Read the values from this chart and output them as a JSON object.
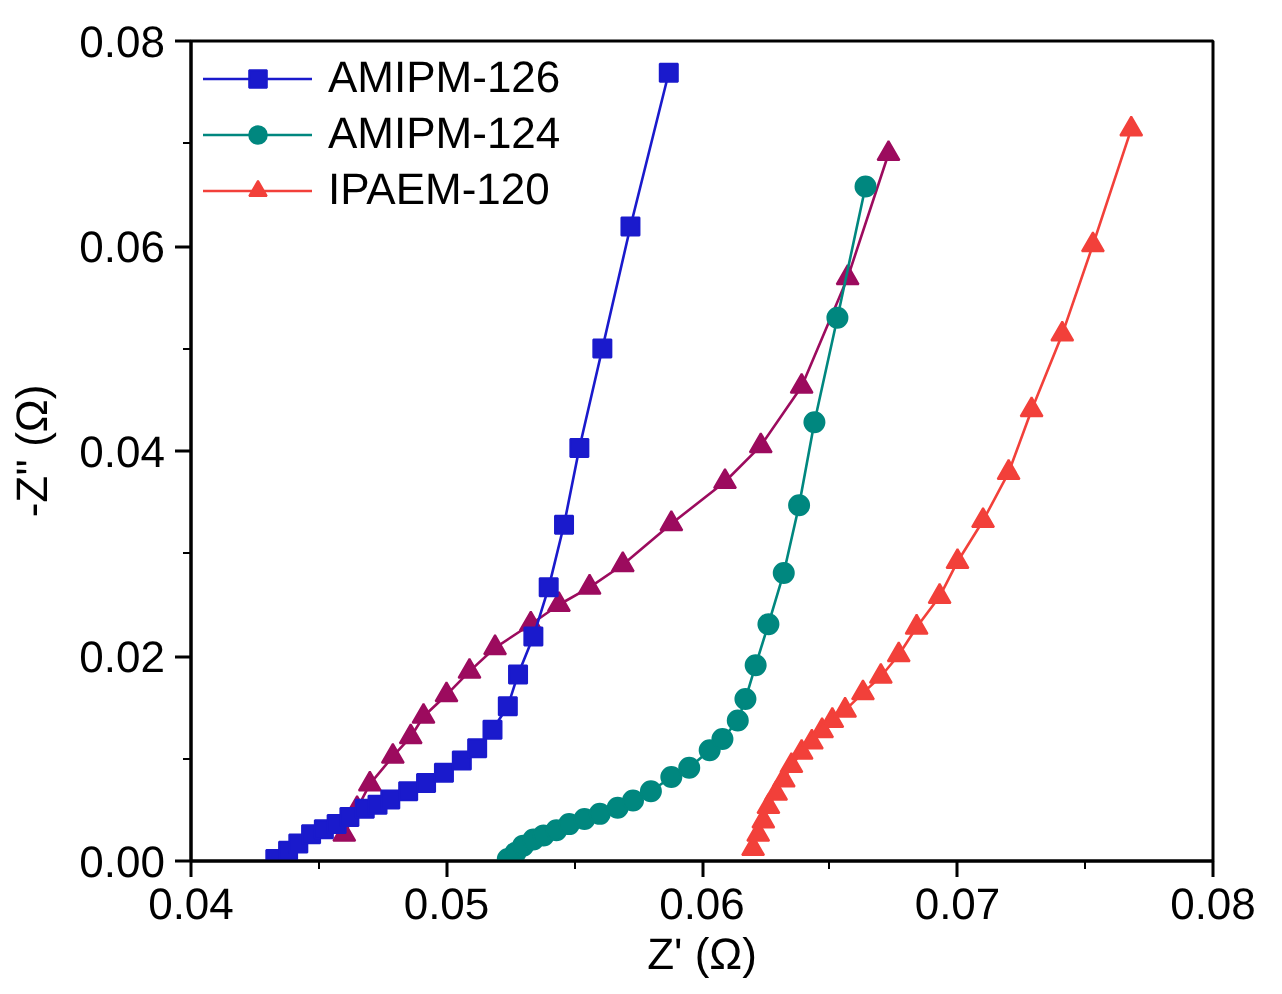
{
  "chart_data": {
    "type": "line",
    "xlabel": "Z' (Ω)",
    "ylabel": "-Z'' (Ω)",
    "xlim": [
      0.04,
      0.08
    ],
    "ylim": [
      0,
      0.08
    ],
    "xticks": [
      0.04,
      {
        "value": 0.045,
        "label": null
      },
      0.05,
      {
        "value": 0.055,
        "label": null
      },
      0.06,
      {
        "value": 0.065,
        "label": null
      },
      0.07,
      {
        "value": 0.075,
        "label": null
      },
      0.08
    ],
    "yticks": [
      {
        "value": 0,
        "label": "0.00"
      },
      {
        "value": 0.01,
        "label": null
      },
      0.02,
      {
        "value": 0.03,
        "label": null
      },
      0.04,
      {
        "value": 0.05,
        "label": null
      },
      0.06,
      {
        "value": 0.07,
        "label": null
      },
      0.08
    ],
    "grid": false,
    "legend": "top left",
    "line_style": "solid",
    "series": [
      {
        "name": "AMIPM-126",
        "color": "#1a1acc",
        "marker": "square",
        "x": [
          0.0433,
          0.0438,
          0.0442,
          0.0447,
          0.0452,
          0.0457,
          0.0462,
          0.0468,
          0.0473,
          0.0478,
          0.0485,
          0.0492,
          0.0499,
          0.0506,
          0.0512,
          0.0518,
          0.0524,
          0.0528,
          0.0534,
          0.054,
          0.0546,
          0.0552,
          0.0561,
          0.0572,
          0.0587
        ],
        "values": [
          0.0002,
          0.001,
          0.0017,
          0.0026,
          0.0031,
          0.0036,
          0.0043,
          0.0051,
          0.0055,
          0.006,
          0.0068,
          0.0076,
          0.0086,
          0.0098,
          0.011,
          0.0128,
          0.0151,
          0.0182,
          0.0219,
          0.0267,
          0.0328,
          0.0403,
          0.05,
          0.0619,
          0.0769
        ]
      },
      {
        "name": "AMIPM-124",
        "color": "#00877f",
        "marker": "circle",
        "x": [
          0.0524,
          0.0527,
          0.053,
          0.0534,
          0.0538,
          0.0543,
          0.0548,
          0.0554,
          0.056,
          0.0567,
          0.0573,
          0.058,
          0.0588,
          0.0595,
          0.0603,
          0.0608,
          0.0614,
          0.0617,
          0.0621,
          0.0626,
          0.0632,
          0.0638,
          0.0644,
          0.0653,
          0.0664
        ],
        "values": [
          0.0002,
          0.0008,
          0.0015,
          0.0021,
          0.0025,
          0.003,
          0.0036,
          0.0041,
          0.0046,
          0.0052,
          0.0059,
          0.0068,
          0.0082,
          0.0091,
          0.0108,
          0.0119,
          0.0137,
          0.0158,
          0.0191,
          0.0231,
          0.0281,
          0.0347,
          0.0428,
          0.053,
          0.0658
        ]
      },
      {
        "color": "#9c0b5e",
        "marker": "triangle",
        "x": [
          0.046,
          0.0465,
          0.047,
          0.0479,
          0.0486,
          0.0491,
          0.05,
          0.0509,
          0.0519,
          0.0533,
          0.0544,
          0.0556,
          0.0569,
          0.0588,
          0.0609,
          0.0623,
          0.0639,
          0.0657,
          0.0673
        ],
        "values": [
          0.0026,
          0.0051,
          0.0075,
          0.0102,
          0.0121,
          0.0141,
          0.0162,
          0.0185,
          0.0208,
          0.0231,
          0.025,
          0.0267,
          0.0289,
          0.0329,
          0.037,
          0.0405,
          0.0463,
          0.0569,
          0.069
        ]
      },
      {
        "name": "IPAEM-120",
        "color": "#f2403a",
        "marker": "triangle",
        "x": [
          0.062,
          0.0622,
          0.0624,
          0.0626,
          0.0629,
          0.0632,
          0.0635,
          0.0639,
          0.0643,
          0.0647,
          0.0651,
          0.0656,
          0.0663,
          0.067,
          0.0677,
          0.0684,
          0.0693,
          0.07,
          0.071,
          0.072,
          0.0729,
          0.0741,
          0.0753,
          0.0768
        ],
        "values": [
          0.0012,
          0.0026,
          0.0039,
          0.0053,
          0.0066,
          0.0079,
          0.0093,
          0.0106,
          0.0116,
          0.0127,
          0.0137,
          0.0147,
          0.0164,
          0.018,
          0.0201,
          0.0228,
          0.0258,
          0.0292,
          0.0332,
          0.0379,
          0.044,
          0.0514,
          0.0601,
          0.0714
        ]
      }
    ]
  }
}
